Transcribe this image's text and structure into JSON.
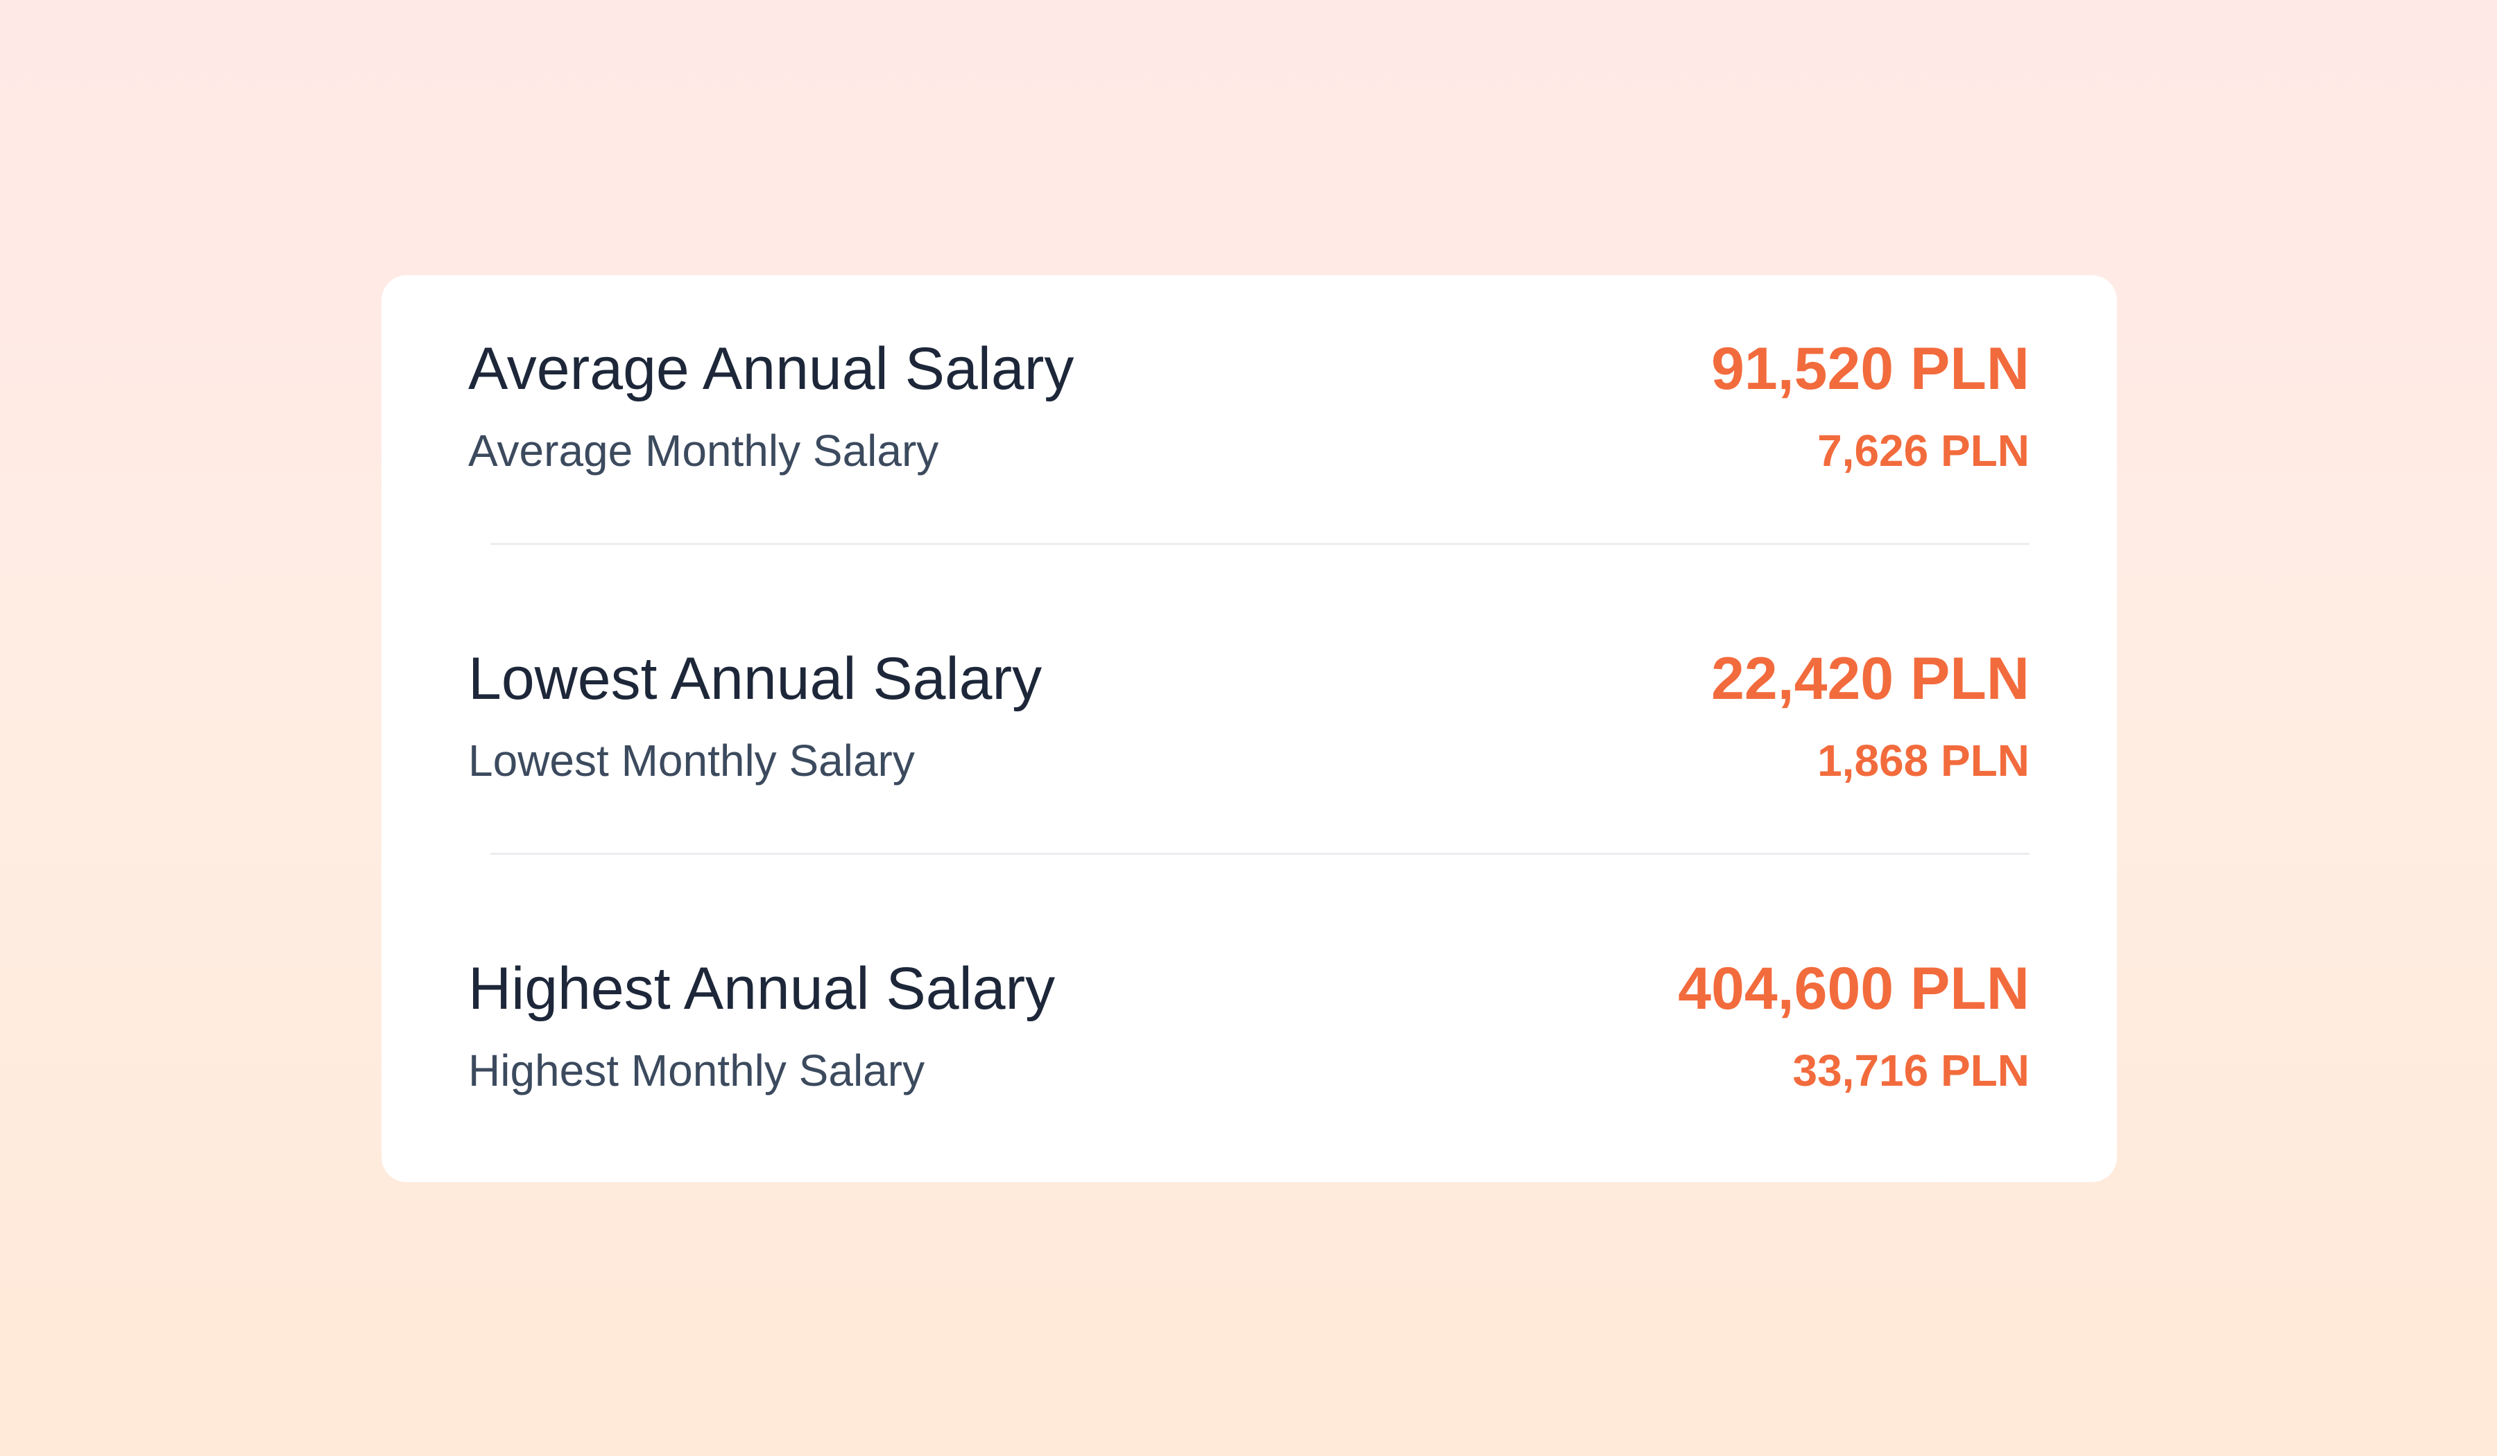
{
  "colors": {
    "accent": "#F26B3D",
    "heading": "#1D2739",
    "subheading": "#3C4A5E",
    "card_background": "#FFFFFF",
    "divider": "#ECEDF0"
  },
  "salary_card": {
    "rows": [
      {
        "annual_label": "Average Annual Salary",
        "annual_value": "91,520 PLN",
        "monthly_label": "Average Monthly Salary",
        "monthly_value": "7,626 PLN"
      },
      {
        "annual_label": "Lowest Annual Salary",
        "annual_value": "22,420 PLN",
        "monthly_label": "Lowest Monthly Salary",
        "monthly_value": "1,868 PLN"
      },
      {
        "annual_label": "Highest Annual Salary",
        "annual_value": "404,600 PLN",
        "monthly_label": "Highest Monthly Salary",
        "monthly_value": "33,716 PLN"
      }
    ]
  }
}
